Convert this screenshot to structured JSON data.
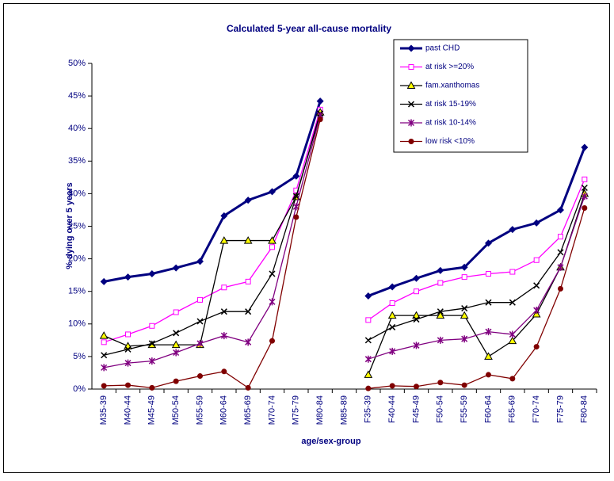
{
  "chart_data": {
    "type": "line",
    "title": "Calculated 5-year all-cause mortality",
    "x_label": "age/sex-group",
    "y_label": "% dying over 5 years",
    "categories": [
      "M35-39",
      "M40-44",
      "M45-49",
      "M50-54",
      "M55-59",
      "M60-64",
      "M65-69",
      "M70-74",
      "M75-79",
      "M80-84",
      "M85-89",
      "F35-39",
      "F40-44",
      "F45-49",
      "F50-54",
      "F55-59",
      "F60-64",
      "F65-69",
      "F70-74",
      "F75-79",
      "F80-84"
    ],
    "ylim": [
      0,
      50
    ],
    "yticks": [
      {
        "value": 0,
        "label": "0%"
      },
      {
        "value": 5,
        "label": "5%"
      },
      {
        "value": 10,
        "label": "10%"
      },
      {
        "value": 15,
        "label": "15%"
      },
      {
        "value": 20,
        "label": "20%"
      },
      {
        "value": 25,
        "label": "25%"
      },
      {
        "value": 30,
        "label": "30%"
      },
      {
        "value": 35,
        "label": "35%"
      },
      {
        "value": 40,
        "label": "40%"
      },
      {
        "value": 45,
        "label": "45%"
      },
      {
        "value": 50,
        "label": "50%"
      }
    ],
    "legend": "top-right",
    "series": [
      {
        "name": "past CHD",
        "color": "#000080",
        "marker": "diamond",
        "values": [
          16.5,
          17.2,
          17.7,
          18.6,
          19.6,
          26.6,
          29.0,
          30.3,
          32.7,
          44.2,
          null,
          14.3,
          15.7,
          17.0,
          18.2,
          18.7,
          22.4,
          24.5,
          25.5,
          27.5,
          37.1
        ]
      },
      {
        "name": "at risk >=20%",
        "color": "#ff00ff",
        "marker": "square",
        "values": [
          7.2,
          8.4,
          9.7,
          11.8,
          13.7,
          15.6,
          16.5,
          21.8,
          30.5,
          42.9,
          null,
          10.6,
          13.2,
          15.0,
          16.3,
          17.2,
          17.7,
          18.0,
          19.8,
          23.4,
          32.2
        ]
      },
      {
        "name": "fam.xanthomas",
        "color": "#000000",
        "marker": "triangle",
        "values": [
          8.2,
          6.6,
          6.8,
          6.8,
          6.8,
          22.8,
          22.8,
          22.8,
          29.5,
          42.5,
          null,
          2.2,
          11.3,
          11.3,
          11.3,
          11.3,
          5.0,
          7.4,
          11.5,
          18.7,
          30.0
        ]
      },
      {
        "name": "at risk 15-19%",
        "color": "#000000",
        "marker": "x",
        "values": [
          5.2,
          6.1,
          7.0,
          8.6,
          10.4,
          11.9,
          11.9,
          17.7,
          29.6,
          42.3,
          null,
          7.5,
          9.5,
          10.7,
          11.9,
          12.4,
          13.3,
          13.3,
          15.9,
          21.0,
          30.9
        ]
      },
      {
        "name": "at risk 10-14%",
        "color": "#800080",
        "marker": "star",
        "values": [
          3.3,
          4.0,
          4.3,
          5.6,
          7.0,
          8.2,
          7.2,
          13.4,
          28.0,
          42.0,
          null,
          4.6,
          5.8,
          6.7,
          7.5,
          7.7,
          8.8,
          8.4,
          12.1,
          18.7,
          29.6
        ]
      },
      {
        "name": "low risk <10%",
        "color": "#800000",
        "marker": "circle",
        "values": [
          0.5,
          0.6,
          0.2,
          1.2,
          2.0,
          2.7,
          0.2,
          7.4,
          26.4,
          41.4,
          null,
          0.1,
          0.5,
          0.4,
          1.0,
          0.6,
          2.2,
          1.6,
          6.5,
          15.4,
          27.8
        ]
      }
    ]
  }
}
